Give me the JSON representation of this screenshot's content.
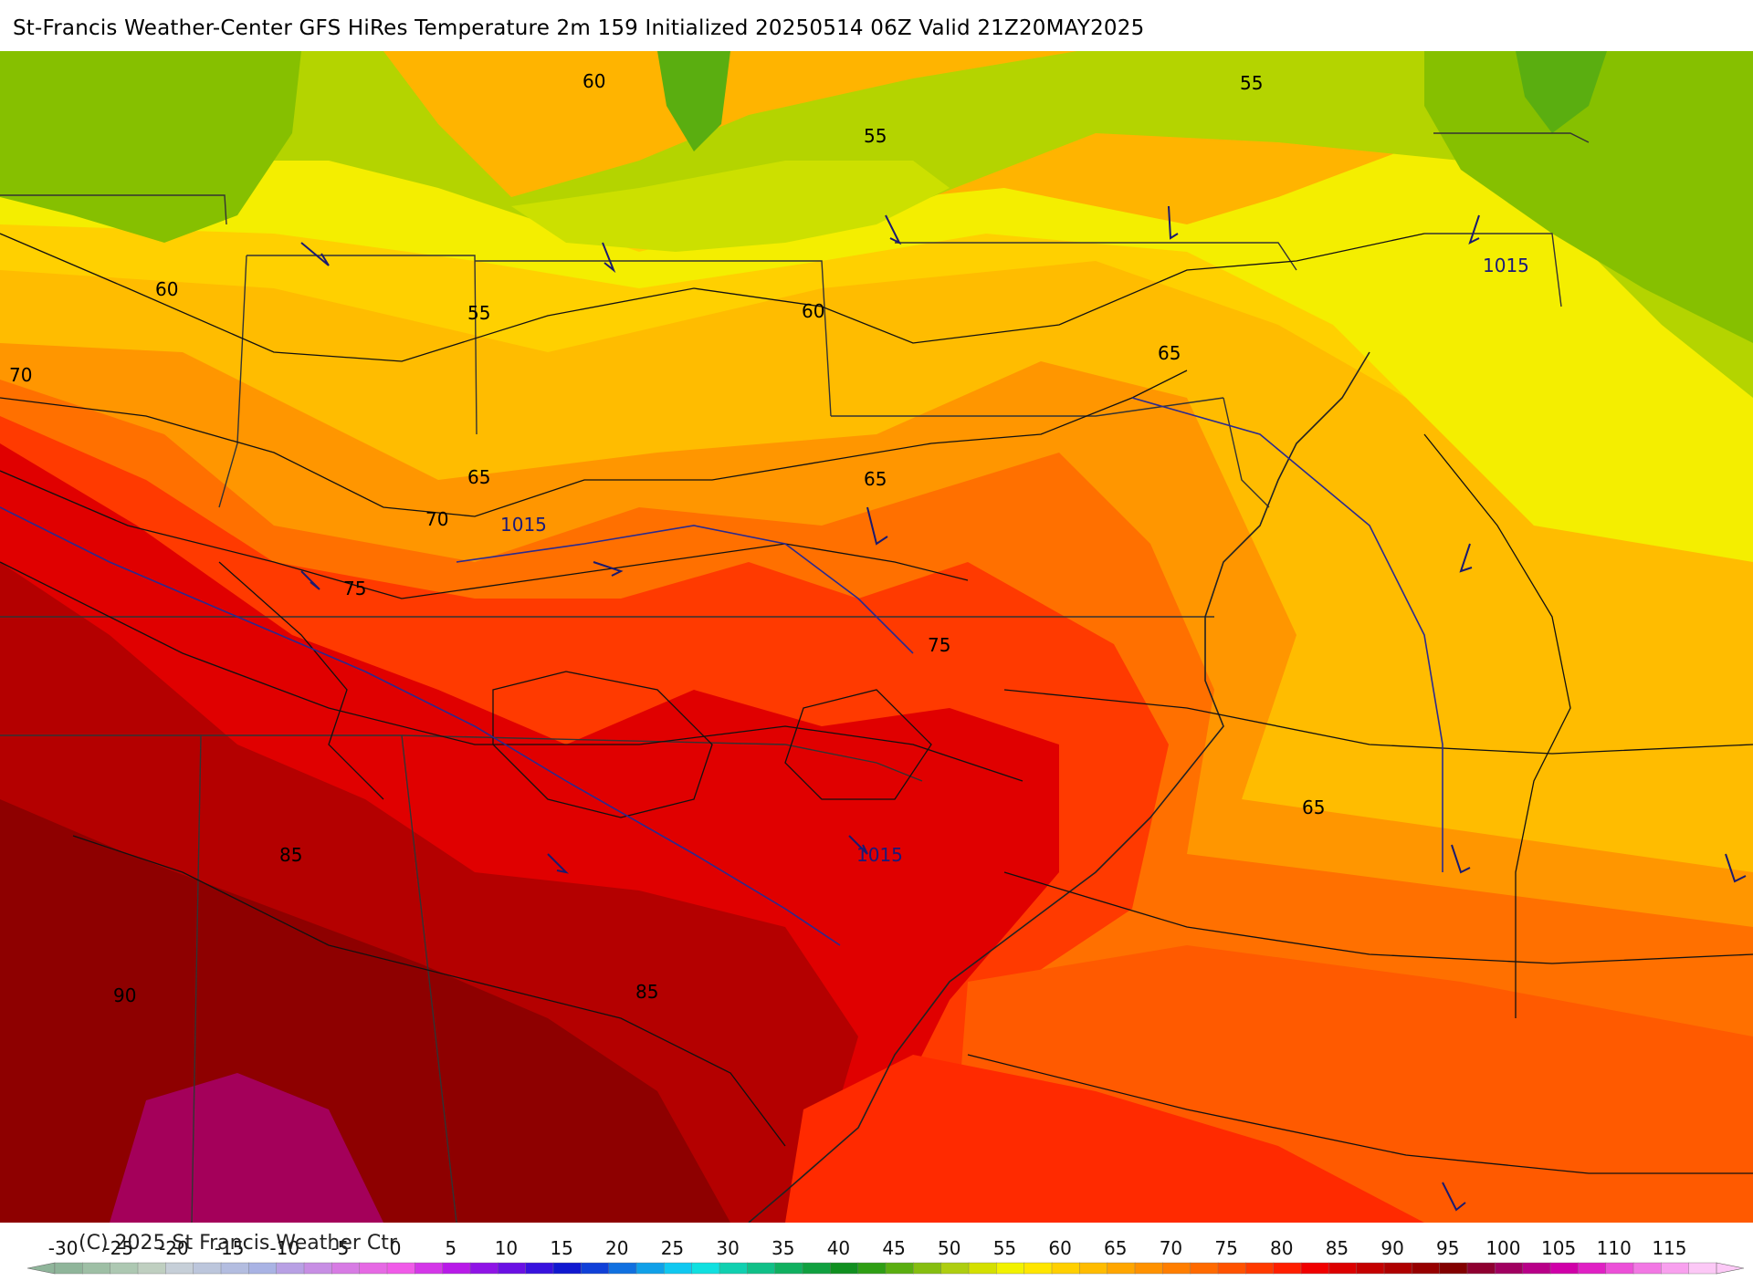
{
  "title": "St-Francis Weather-Center GFS HiRes Temperature 2m  159 Initialized 20250514 06Z Valid 21Z20MAY2025",
  "copyright": "(C) 2025 St Francis Weather Ctr",
  "contour_labels": [
    {
      "text": "60"
    },
    {
      "text": "55"
    },
    {
      "text": "55"
    },
    {
      "text": "60"
    },
    {
      "text": "55"
    },
    {
      "text": "60"
    },
    {
      "text": "65"
    },
    {
      "text": "70"
    },
    {
      "text": "65"
    },
    {
      "text": "70"
    },
    {
      "text": "65"
    },
    {
      "text": "75"
    },
    {
      "text": "75"
    },
    {
      "text": "85"
    },
    {
      "text": "85"
    },
    {
      "text": "90"
    },
    {
      "text": "65"
    }
  ],
  "isobar_labels": [
    {
      "text": "1015"
    },
    {
      "text": "1015"
    },
    {
      "text": "1015"
    }
  ],
  "colorbar": {
    "ticks": [
      "-30",
      "-25",
      "-20",
      "-15",
      "-10",
      "-5",
      "0",
      "5",
      "10",
      "15",
      "20",
      "25",
      "30",
      "35",
      "40",
      "45",
      "50",
      "55",
      "60",
      "65",
      "70",
      "75",
      "80",
      "85",
      "90",
      "95",
      "100",
      "105",
      "110",
      "115"
    ],
    "colors": [
      "#8fb59a",
      "#9ebfa5",
      "#adc8b2",
      "#bfcfc0",
      "#c6cfd8",
      "#bcc6dc",
      "#b3bde0",
      "#a9b3e4",
      "#b8a0e4",
      "#c78ee4",
      "#d77be4",
      "#e669e4",
      "#f05be8",
      "#d437e8",
      "#b81ae8",
      "#8f14e6",
      "#6a10e4",
      "#3812de",
      "#1018d0",
      "#1040d8",
      "#1070e0",
      "#10a0e8",
      "#10c8f0",
      "#10e0e0",
      "#10d0b0",
      "#10c088",
      "#10b060",
      "#10a040",
      "#108f20",
      "#2e9e14",
      "#5aae10",
      "#86be10",
      "#aece10",
      "#d4e000",
      "#f2f200",
      "#ffe600",
      "#ffd000",
      "#ffbc00",
      "#ffa600",
      "#ff9200",
      "#ff7e00",
      "#ff6a00",
      "#ff5200",
      "#ff3a00",
      "#ff1e00",
      "#f00000",
      "#dc0000",
      "#c40000",
      "#ae0000",
      "#960000",
      "#820000",
      "#8e0030",
      "#a00060",
      "#b80088",
      "#d000a8",
      "#e020c4",
      "#ec50d8",
      "#f278e4",
      "#f8a0ee",
      "#fcc8f6"
    ]
  }
}
